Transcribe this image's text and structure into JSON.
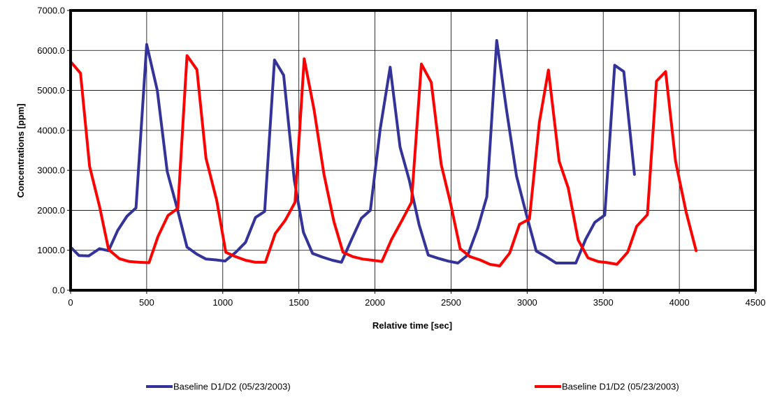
{
  "chart_data": {
    "type": "line",
    "xlabel": "Relative time [sec]",
    "ylabel": "Concentrations [ppm]",
    "xlim": [
      0,
      4500
    ],
    "ylim": [
      0,
      7000
    ],
    "x_ticks": [
      0,
      500,
      1000,
      1500,
      2000,
      2500,
      3000,
      3500,
      4000,
      4500
    ],
    "x_tick_labels": [
      "0",
      "500",
      "1000",
      "1500",
      "2000",
      "2500",
      "3000",
      "3500",
      "4000",
      "4500"
    ],
    "y_ticks": [
      0,
      1000,
      2000,
      3000,
      4000,
      5000,
      6000,
      7000
    ],
    "y_tick_labels": [
      "0.0",
      "1000.0",
      "2000.0",
      "3000.0",
      "4000.0",
      "5000.0",
      "6000.0",
      "7000.0"
    ],
    "grid": true,
    "legend_position": "bottom",
    "series": [
      {
        "name": "Baseline D1/D2 (05/23/2003)",
        "color": "#333399",
        "points": [
          [
            0,
            1080
          ],
          [
            55,
            870
          ],
          [
            120,
            860
          ],
          [
            190,
            1040
          ],
          [
            250,
            990
          ],
          [
            310,
            1500
          ],
          [
            370,
            1850
          ],
          [
            430,
            2060
          ],
          [
            500,
            6150
          ],
          [
            570,
            5000
          ],
          [
            635,
            2970
          ],
          [
            700,
            2060
          ],
          [
            765,
            1080
          ],
          [
            830,
            900
          ],
          [
            890,
            780
          ],
          [
            955,
            760
          ],
          [
            1015,
            730
          ],
          [
            1085,
            950
          ],
          [
            1150,
            1200
          ],
          [
            1215,
            1820
          ],
          [
            1275,
            1970
          ],
          [
            1340,
            5760
          ],
          [
            1400,
            5380
          ],
          [
            1470,
            2760
          ],
          [
            1530,
            1450
          ],
          [
            1590,
            920
          ],
          [
            1655,
            830
          ],
          [
            1720,
            750
          ],
          [
            1780,
            700
          ],
          [
            1845,
            1260
          ],
          [
            1910,
            1800
          ],
          [
            1970,
            2000
          ],
          [
            2035,
            4050
          ],
          [
            2100,
            5580
          ],
          [
            2165,
            3580
          ],
          [
            2225,
            2760
          ],
          [
            2290,
            1640
          ],
          [
            2350,
            880
          ],
          [
            2415,
            800
          ],
          [
            2480,
            730
          ],
          [
            2545,
            680
          ],
          [
            2610,
            880
          ],
          [
            2675,
            1550
          ],
          [
            2735,
            2340
          ],
          [
            2800,
            6250
          ],
          [
            2865,
            4500
          ],
          [
            2930,
            2860
          ],
          [
            2995,
            1900
          ],
          [
            3060,
            980
          ],
          [
            3125,
            840
          ],
          [
            3190,
            680
          ],
          [
            3255,
            680
          ],
          [
            3320,
            680
          ],
          [
            3385,
            1280
          ],
          [
            3445,
            1700
          ],
          [
            3510,
            1880
          ],
          [
            3575,
            5630
          ],
          [
            3635,
            5470
          ],
          [
            3705,
            2900
          ]
        ]
      },
      {
        "name": "Baseline D1/D2 (05/23/2003)",
        "color": "#ff0000",
        "points": [
          [
            0,
            5720
          ],
          [
            65,
            5430
          ],
          [
            125,
            3100
          ],
          [
            190,
            2100
          ],
          [
            250,
            1020
          ],
          [
            320,
            790
          ],
          [
            385,
            720
          ],
          [
            450,
            700
          ],
          [
            515,
            690
          ],
          [
            575,
            1350
          ],
          [
            640,
            1870
          ],
          [
            705,
            2050
          ],
          [
            765,
            5870
          ],
          [
            830,
            5520
          ],
          [
            890,
            3300
          ],
          [
            960,
            2250
          ],
          [
            1020,
            950
          ],
          [
            1085,
            840
          ],
          [
            1150,
            750
          ],
          [
            1215,
            700
          ],
          [
            1280,
            700
          ],
          [
            1345,
            1420
          ],
          [
            1410,
            1750
          ],
          [
            1475,
            2200
          ],
          [
            1535,
            5790
          ],
          [
            1600,
            4520
          ],
          [
            1665,
            2900
          ],
          [
            1730,
            1720
          ],
          [
            1790,
            950
          ],
          [
            1855,
            840
          ],
          [
            1920,
            780
          ],
          [
            1985,
            750
          ],
          [
            2045,
            720
          ],
          [
            2110,
            1280
          ],
          [
            2175,
            1730
          ],
          [
            2240,
            2200
          ],
          [
            2305,
            5660
          ],
          [
            2370,
            5200
          ],
          [
            2435,
            3150
          ],
          [
            2495,
            2200
          ],
          [
            2560,
            1040
          ],
          [
            2625,
            840
          ],
          [
            2690,
            760
          ],
          [
            2755,
            650
          ],
          [
            2820,
            610
          ],
          [
            2885,
            930
          ],
          [
            2950,
            1650
          ],
          [
            3015,
            1780
          ],
          [
            3080,
            4200
          ],
          [
            3140,
            5510
          ],
          [
            3210,
            3230
          ],
          [
            3270,
            2560
          ],
          [
            3335,
            1260
          ],
          [
            3400,
            810
          ],
          [
            3465,
            720
          ],
          [
            3530,
            690
          ],
          [
            3590,
            650
          ],
          [
            3660,
            950
          ],
          [
            3720,
            1600
          ],
          [
            3790,
            1890
          ],
          [
            3850,
            5230
          ],
          [
            3910,
            5470
          ],
          [
            3975,
            3230
          ],
          [
            4045,
            1950
          ],
          [
            4110,
            990
          ]
        ]
      }
    ]
  }
}
